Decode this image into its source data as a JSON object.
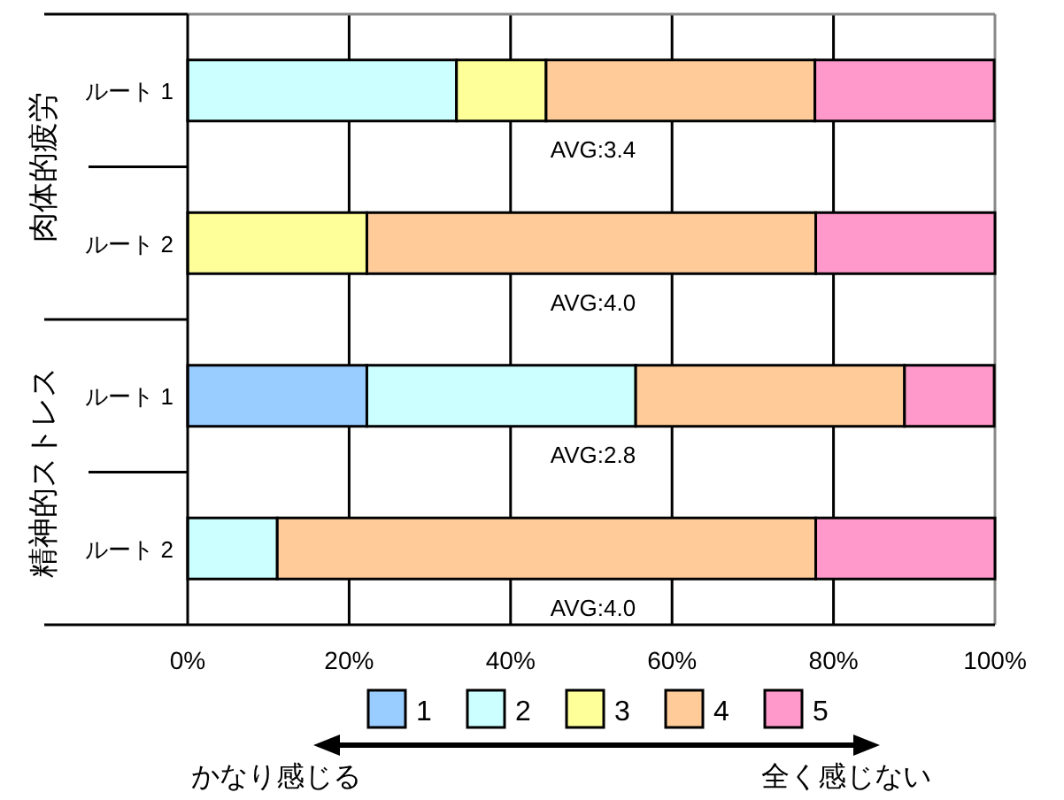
{
  "chart_data": {
    "type": "bar",
    "orientation": "horizontal",
    "stacked": true,
    "categories": [
      "ルート 1",
      "ルート 2",
      "ルート 1",
      "ルート 2"
    ],
    "series": [
      {
        "name": "1",
        "color": "#99ccff",
        "values": [
          0,
          0,
          22.2,
          0
        ]
      },
      {
        "name": "2",
        "color": "#ccffff",
        "values": [
          33.3,
          0,
          33.3,
          11.1
        ]
      },
      {
        "name": "3",
        "color": "#ffff99",
        "values": [
          11.1,
          22.2,
          0,
          0
        ]
      },
      {
        "name": "4",
        "color": "#ffcc99",
        "values": [
          33.3,
          55.6,
          33.3,
          66.7
        ]
      },
      {
        "name": "5",
        "color": "#ff99cc",
        "values": [
          22.2,
          22.2,
          11.1,
          22.2
        ]
      }
    ],
    "xlim": [
      0,
      100
    ],
    "xticks": [
      {
        "value": 0,
        "label": "0%"
      },
      {
        "value": 20,
        "label": "20%"
      },
      {
        "value": 40,
        "label": "40%"
      },
      {
        "value": 60,
        "label": "60%"
      },
      {
        "value": 80,
        "label": "80%"
      },
      {
        "value": 100,
        "label": "100%"
      }
    ],
    "grid": "x",
    "legend": "bottom",
    "annotations": [
      "肉体的疲労",
      "精神的ストレス",
      "AVG:3.4",
      "AVG:4.0",
      "AVG:2.8",
      "AVG:4.0",
      "かなり感じる",
      "全く感じない"
    ]
  }
}
